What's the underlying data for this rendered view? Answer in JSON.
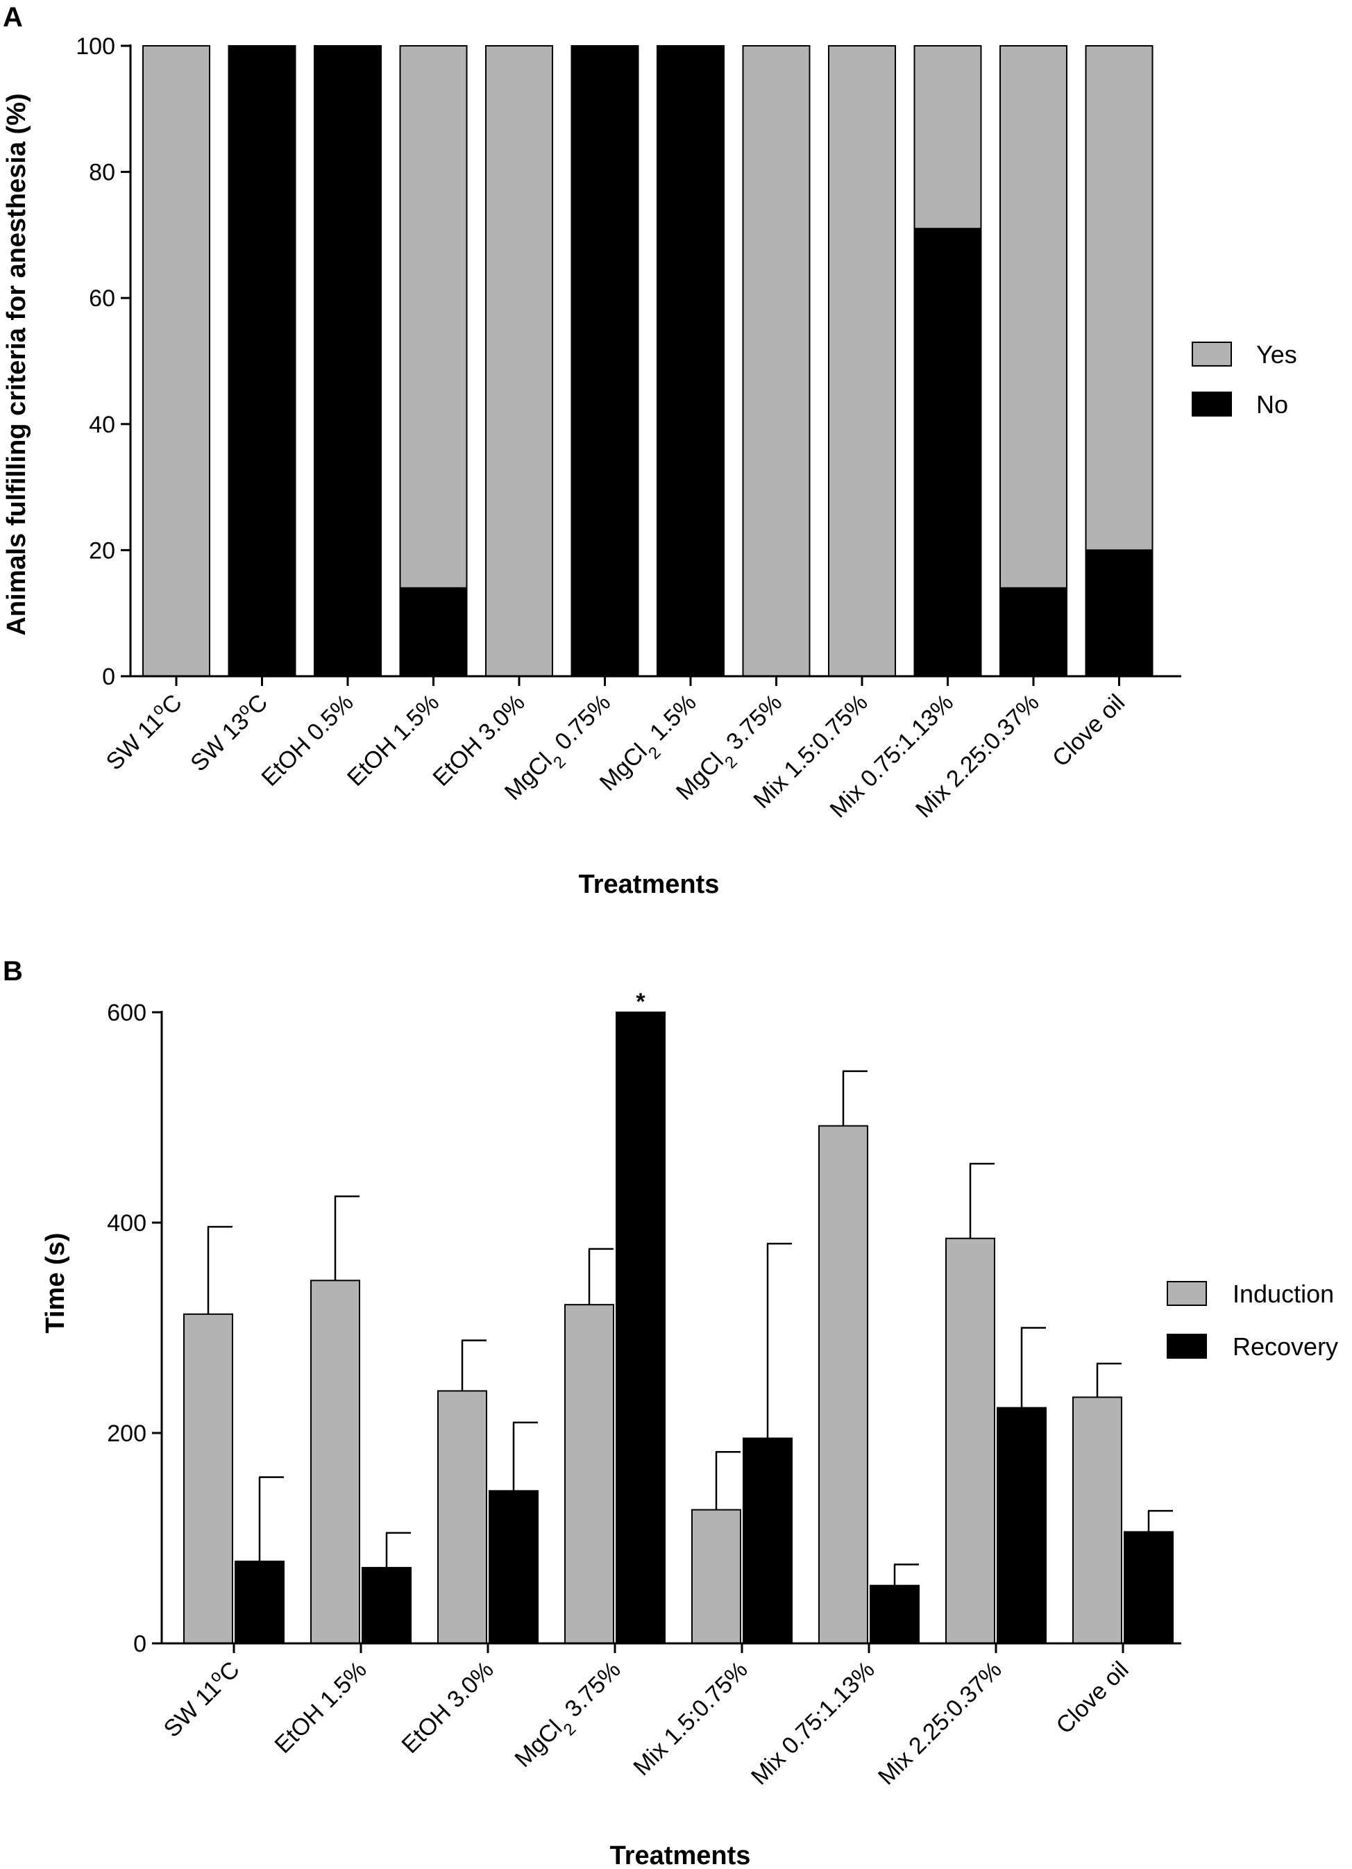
{
  "colors": {
    "yes": "#b3b3b3",
    "no": "#000000",
    "induction": "#b3b3b3",
    "recovery": "#000000",
    "axis": "#000000"
  },
  "chart_data": [
    {
      "panel_label": "A",
      "type": "bar",
      "stacked": true,
      "title": "",
      "xlabel": "Treatments",
      "ylabel": "Animals fulfilling criteria for anesthesia (%)",
      "ylim": [
        0,
        100
      ],
      "yticks": [
        "0",
        "20",
        "40",
        "60",
        "80",
        "100"
      ],
      "categories": [
        {
          "main": "SW 11",
          "sup": "o",
          "tail": "C"
        },
        {
          "main": "SW 13",
          "sup": "o",
          "tail": "C"
        },
        {
          "main": "EtOH 0.5%"
        },
        {
          "main": "EtOH 1.5%"
        },
        {
          "main": "EtOH 3.0%"
        },
        {
          "main": "MgCl",
          "sub": "2",
          "tail": " 0.75%"
        },
        {
          "main": "MgCl",
          "sub": "2",
          "tail": " 1.5%"
        },
        {
          "main": "MgCl",
          "sub": "2",
          "tail": " 3.75%"
        },
        {
          "main": "Mix 1.5:0.75%"
        },
        {
          "main": "Mix 0.75:1.13%"
        },
        {
          "main": "Mix 2.25:0.37%"
        },
        {
          "main": "Clove oil"
        }
      ],
      "series": [
        {
          "name": "No",
          "values": [
            0,
            100,
            100,
            14,
            0,
            100,
            100,
            0,
            0,
            71,
            14,
            20
          ]
        },
        {
          "name": "Yes",
          "values": [
            100,
            0,
            0,
            86,
            100,
            0,
            0,
            100,
            100,
            29,
            86,
            80
          ]
        }
      ],
      "legend": [
        "Yes",
        "No"
      ],
      "legend_position": "right"
    },
    {
      "panel_label": "B",
      "type": "bar",
      "stacked": false,
      "title": "",
      "xlabel": "Treatments",
      "ylabel": "Time (s)",
      "ylim": [
        0,
        600
      ],
      "yticks": [
        "0",
        "200",
        "400",
        "600"
      ],
      "categories": [
        {
          "main": "SW 11",
          "sup": "o",
          "tail": "C"
        },
        {
          "main": "EtOH 1.5%"
        },
        {
          "main": "EtOH 3.0%"
        },
        {
          "main": "MgCl",
          "sub": "2",
          "tail": " 3.75%"
        },
        {
          "main": "Mix 1.5:0.75%"
        },
        {
          "main": "Mix 0.75:1.13%"
        },
        {
          "main": "Mix 2.25:0.37%"
        },
        {
          "main": "Clove oil"
        }
      ],
      "series": [
        {
          "name": "Induction",
          "values": [
            313,
            345,
            240,
            322,
            127,
            492,
            385,
            234
          ],
          "error": [
            83,
            80,
            48,
            53,
            55,
            52,
            71,
            32
          ]
        },
        {
          "name": "Recovery",
          "values": [
            78,
            72,
            145,
            600,
            195,
            55,
            224,
            106
          ],
          "error": [
            80,
            33,
            65,
            0,
            185,
            20,
            76,
            20
          ]
        }
      ],
      "annotations": [
        {
          "category_index": 3,
          "series": "Recovery",
          "text": "*"
        }
      ],
      "legend": [
        "Induction",
        "Recovery"
      ],
      "legend_position": "right"
    }
  ]
}
